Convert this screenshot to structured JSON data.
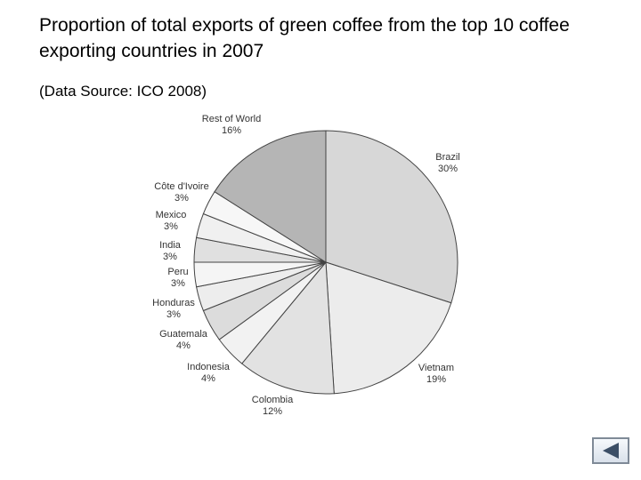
{
  "title": "Proportion of total exports of green coffee from the top 10 coffee exporting countries in 2007",
  "source": "(Data Source: ICO 2008)",
  "chart_data": {
    "type": "pie",
    "title": "Proportion of total exports of green coffee from the top 10 coffee exporting countries in 2007",
    "slices": [
      {
        "label": "Brazil",
        "value": 30,
        "value_label": "30%",
        "color": "#d7d7d7"
      },
      {
        "label": "Vietnam",
        "value": 19,
        "value_label": "19%",
        "color": "#ececec"
      },
      {
        "label": "Colombia",
        "value": 12,
        "value_label": "12%",
        "color": "#e2e2e2"
      },
      {
        "label": "Indonesia",
        "value": 4,
        "value_label": "4%",
        "color": "#f2f2f2"
      },
      {
        "label": "Guatemala",
        "value": 4,
        "value_label": "4%",
        "color": "#dcdcdc"
      },
      {
        "label": "Honduras",
        "value": 3,
        "value_label": "3%",
        "color": "#ededed"
      },
      {
        "label": "Peru",
        "value": 3,
        "value_label": "3%",
        "color": "#f5f5f5"
      },
      {
        "label": "India",
        "value": 3,
        "value_label": "3%",
        "color": "#e0e0e0"
      },
      {
        "label": "Mexico",
        "value": 3,
        "value_label": "3%",
        "color": "#f0f0f0"
      },
      {
        "label": "Côte d'Ivoire",
        "value": 3,
        "value_label": "3%",
        "color": "#f7f7f7"
      },
      {
        "label": "Rest of World",
        "value": 16,
        "value_label": "16%",
        "color": "#b5b5b5"
      }
    ],
    "start": "12 o'clock",
    "direction": "clockwise",
    "legend": "none"
  },
  "nav": {
    "back_icon": "back-arrow-icon"
  }
}
